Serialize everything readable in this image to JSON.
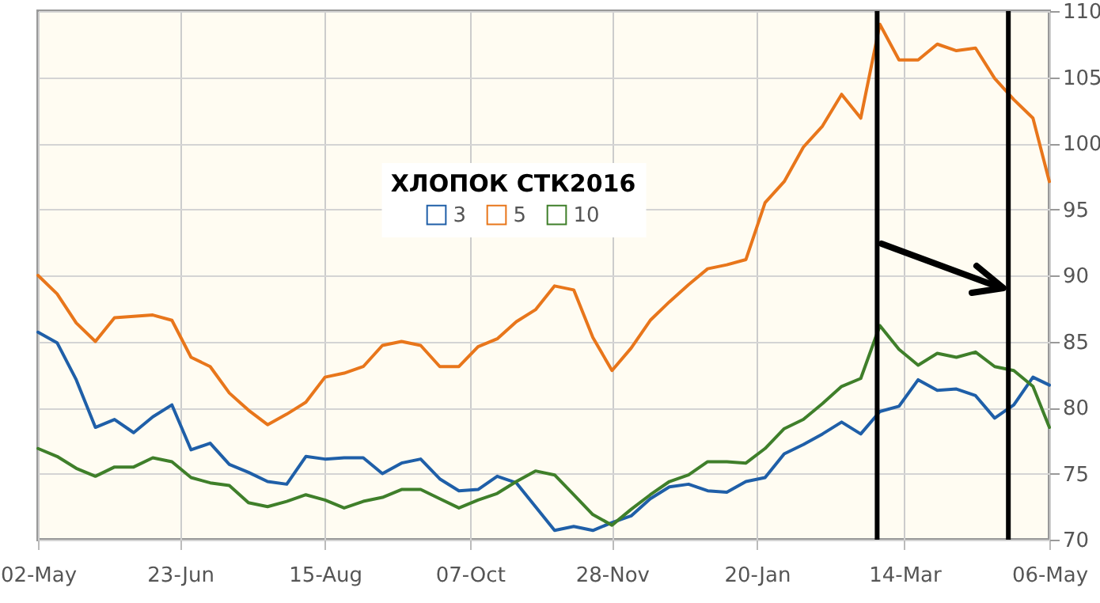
{
  "chart_data": {
    "type": "line",
    "legend_title": "ХЛОПОК СТК2016",
    "legend": "top",
    "grid": true,
    "marker": "none",
    "line_style": "solid",
    "x": [
      "2015-05-02",
      "2015-05-09",
      "2015-05-16",
      "2015-05-23",
      "2015-05-30",
      "2015-06-06",
      "2015-06-13",
      "2015-06-20",
      "2015-06-27",
      "2015-07-04",
      "2015-07-11",
      "2015-07-18",
      "2015-07-25",
      "2015-08-01",
      "2015-08-08",
      "2015-08-15",
      "2015-08-22",
      "2015-08-29",
      "2015-09-05",
      "2015-09-12",
      "2015-09-19",
      "2015-09-26",
      "2015-10-03",
      "2015-10-10",
      "2015-10-17",
      "2015-10-24",
      "2015-10-31",
      "2015-11-07",
      "2015-11-14",
      "2015-11-21",
      "2015-11-28",
      "2015-12-05",
      "2015-12-12",
      "2015-12-19",
      "2015-12-26",
      "2016-01-02",
      "2016-01-09",
      "2016-01-16",
      "2016-01-23",
      "2016-01-30",
      "2016-02-06",
      "2016-02-13",
      "2016-02-20",
      "2016-02-27",
      "2016-03-05",
      "2016-03-12",
      "2016-03-19",
      "2016-03-26",
      "2016-04-02",
      "2016-04-09",
      "2016-04-16",
      "2016-04-23",
      "2016-04-30",
      "2016-05-06"
    ],
    "series": [
      {
        "name": "3",
        "color": "#1f5fa8",
        "values": [
          85.7,
          84.9,
          82.1,
          78.5,
          79.1,
          78.1,
          79.3,
          80.2,
          76.8,
          77.3,
          75.7,
          75.1,
          74.4,
          74.2,
          76.3,
          76.1,
          76.2,
          76.2,
          75.0,
          75.8,
          76.1,
          74.6,
          73.7,
          73.8,
          74.8,
          74.3,
          72.5,
          70.7,
          71.0,
          70.7,
          71.3,
          71.8,
          73.1,
          74.0,
          74.2,
          73.7,
          73.6,
          74.4,
          74.7,
          76.5,
          77.2,
          78.0,
          78.9,
          78.0,
          79.7,
          80.1,
          82.1,
          81.3,
          81.4,
          80.9,
          79.2,
          80.2,
          82.3,
          81.7
        ]
      },
      {
        "name": "5",
        "color": "#e8761b",
        "values": [
          90.0,
          88.6,
          86.4,
          85.0,
          86.8,
          86.9,
          87.0,
          86.6,
          83.8,
          83.1,
          81.1,
          79.8,
          78.7,
          79.5,
          80.4,
          82.3,
          82.6,
          83.1,
          84.7,
          85.0,
          84.7,
          83.1,
          83.1,
          84.6,
          85.2,
          86.5,
          87.4,
          89.2,
          88.9,
          85.3,
          82.8,
          84.5,
          86.6,
          88.0,
          89.3,
          90.5,
          90.8,
          91.2,
          95.5,
          97.1,
          99.7,
          101.3,
          103.7,
          101.9,
          109.0,
          106.3,
          106.3,
          107.5,
          107.0,
          107.2,
          104.9,
          103.3,
          101.9,
          97.1
        ]
      },
      {
        "name": "10",
        "color": "#3f7f2a",
        "values": [
          76.9,
          76.3,
          75.4,
          74.8,
          75.5,
          75.5,
          76.2,
          75.9,
          74.7,
          74.3,
          74.1,
          72.8,
          72.5,
          72.9,
          73.4,
          73.0,
          72.4,
          72.9,
          73.2,
          73.8,
          73.8,
          73.1,
          72.4,
          73.0,
          73.5,
          74.4,
          75.2,
          74.9,
          73.4,
          71.9,
          71.1,
          72.3,
          73.4,
          74.4,
          74.9,
          75.9,
          75.9,
          75.8,
          76.9,
          78.4,
          79.1,
          80.3,
          81.6,
          82.2,
          86.2,
          84.4,
          83.2,
          84.1,
          83.8,
          84.2,
          83.1,
          82.8,
          81.6,
          78.5
        ]
      }
    ],
    "xlim": [
      "2015-05-02",
      "2016-05-06"
    ],
    "xticks": [
      {
        "value": "2015-05-02",
        "label": "02-May"
      },
      {
        "value": "2015-06-23",
        "label": "23-Jun"
      },
      {
        "value": "2015-08-15",
        "label": "15-Aug"
      },
      {
        "value": "2015-10-07",
        "label": "07-Oct"
      },
      {
        "value": "2015-11-28",
        "label": "28-Nov"
      },
      {
        "value": "2016-01-20",
        "label": "20-Jan"
      },
      {
        "value": "2016-03-14",
        "label": "14-Mar"
      },
      {
        "value": "2016-05-06",
        "label": "06-May"
      }
    ],
    "ylim": [
      70,
      110
    ],
    "yticks": [
      70,
      75,
      80,
      85,
      90,
      95,
      100,
      105,
      110
    ],
    "ref_lines": [
      {
        "axis": "x",
        "value": "2016-03-04",
        "color": "#000000",
        "line_style": "solid"
      },
      {
        "axis": "x",
        "value": "2016-04-21",
        "color": "#000000",
        "line_style": "solid"
      }
    ]
  }
}
